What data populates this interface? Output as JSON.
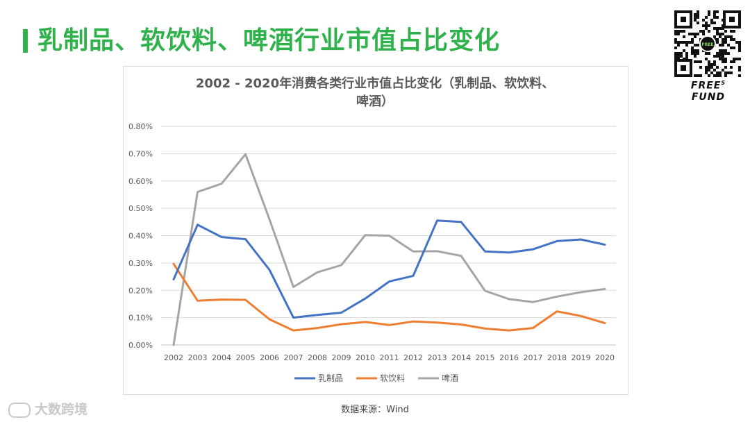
{
  "header": {
    "title": "乳制品、软饮料、啤酒行业市值占比变化"
  },
  "brand": {
    "name": "FREE",
    "superscript": "S",
    "suffix": "FUND",
    "qr_center_text": "FREE"
  },
  "chart_data": {
    "type": "line",
    "title_line1": "2002 - 2020年消费各类行业市值占比变化（乳制品、软饮料、",
    "title_line2": "啤酒）",
    "x": [
      "2002",
      "2003",
      "2004",
      "2005",
      "2006",
      "2007",
      "2008",
      "2009",
      "2010",
      "2011",
      "2012",
      "2013",
      "2014",
      "2015",
      "2016",
      "2017",
      "2018",
      "2019",
      "2020"
    ],
    "y_ticks": [
      "0.00%",
      "0.10%",
      "0.20%",
      "0.30%",
      "0.40%",
      "0.50%",
      "0.60%",
      "0.70%",
      "0.80%"
    ],
    "ylim": [
      0,
      0.8
    ],
    "grid": true,
    "legend_position": "bottom",
    "series": [
      {
        "name": "乳制品",
        "color": "#4472c4",
        "values": [
          0.24,
          0.44,
          0.395,
          0.387,
          0.275,
          0.1,
          0.11,
          0.118,
          0.17,
          0.232,
          0.253,
          0.455,
          0.45,
          0.342,
          0.338,
          0.35,
          0.38,
          0.386,
          0.367
        ]
      },
      {
        "name": "软饮料",
        "color": "#ed7d31",
        "values": [
          0.297,
          0.162,
          0.166,
          0.165,
          0.094,
          0.053,
          0.062,
          0.076,
          0.084,
          0.073,
          0.086,
          0.082,
          0.075,
          0.06,
          0.053,
          0.062,
          0.123,
          0.106,
          0.08
        ]
      },
      {
        "name": "啤酒",
        "color": "#a5a5a5",
        "values": [
          0.0,
          0.56,
          0.59,
          0.698,
          0.46,
          0.212,
          0.266,
          0.292,
          0.402,
          0.4,
          0.342,
          0.343,
          0.326,
          0.198,
          0.168,
          0.157,
          0.177,
          0.193,
          0.205
        ]
      }
    ]
  },
  "footer": {
    "source": "数据来源：Wind",
    "watermark": "大数跨境"
  }
}
